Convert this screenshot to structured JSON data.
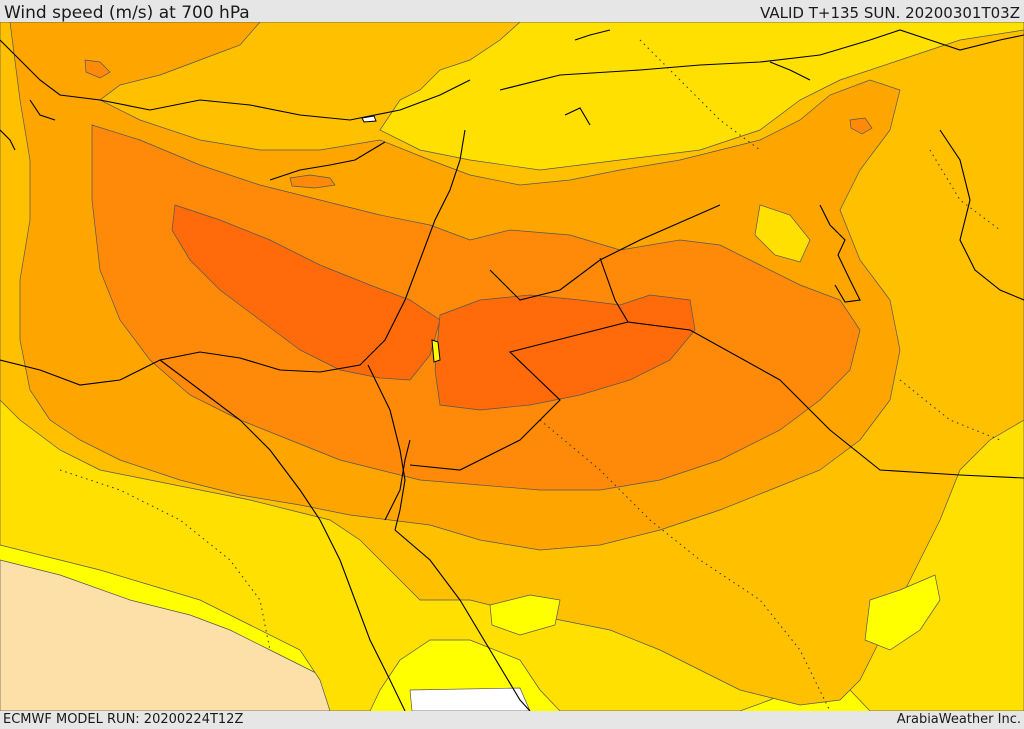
{
  "header": {
    "title": "Wind speed (m/s) at 700 hPa",
    "valid": "VALID T+135 SUN. 20200301T03Z"
  },
  "footer": {
    "model_run": "ECMWF MODEL RUN: 20200224T12Z",
    "brand": "ArabiaWeather Inc."
  },
  "map": {
    "variable": "wind speed",
    "units": "m/s",
    "level": "700 hPa",
    "colors": {
      "background": "#ffff00",
      "light_tan": "#fde0a8",
      "level_1": "#ffe000",
      "level_2": "#ffc000",
      "level_3": "#ffa500",
      "level_4": "#ff8a0a",
      "level_5": "#ff6a0a",
      "no_data": "#ffffff",
      "coastline": "#000000",
      "contour": "#555555"
    }
  }
}
